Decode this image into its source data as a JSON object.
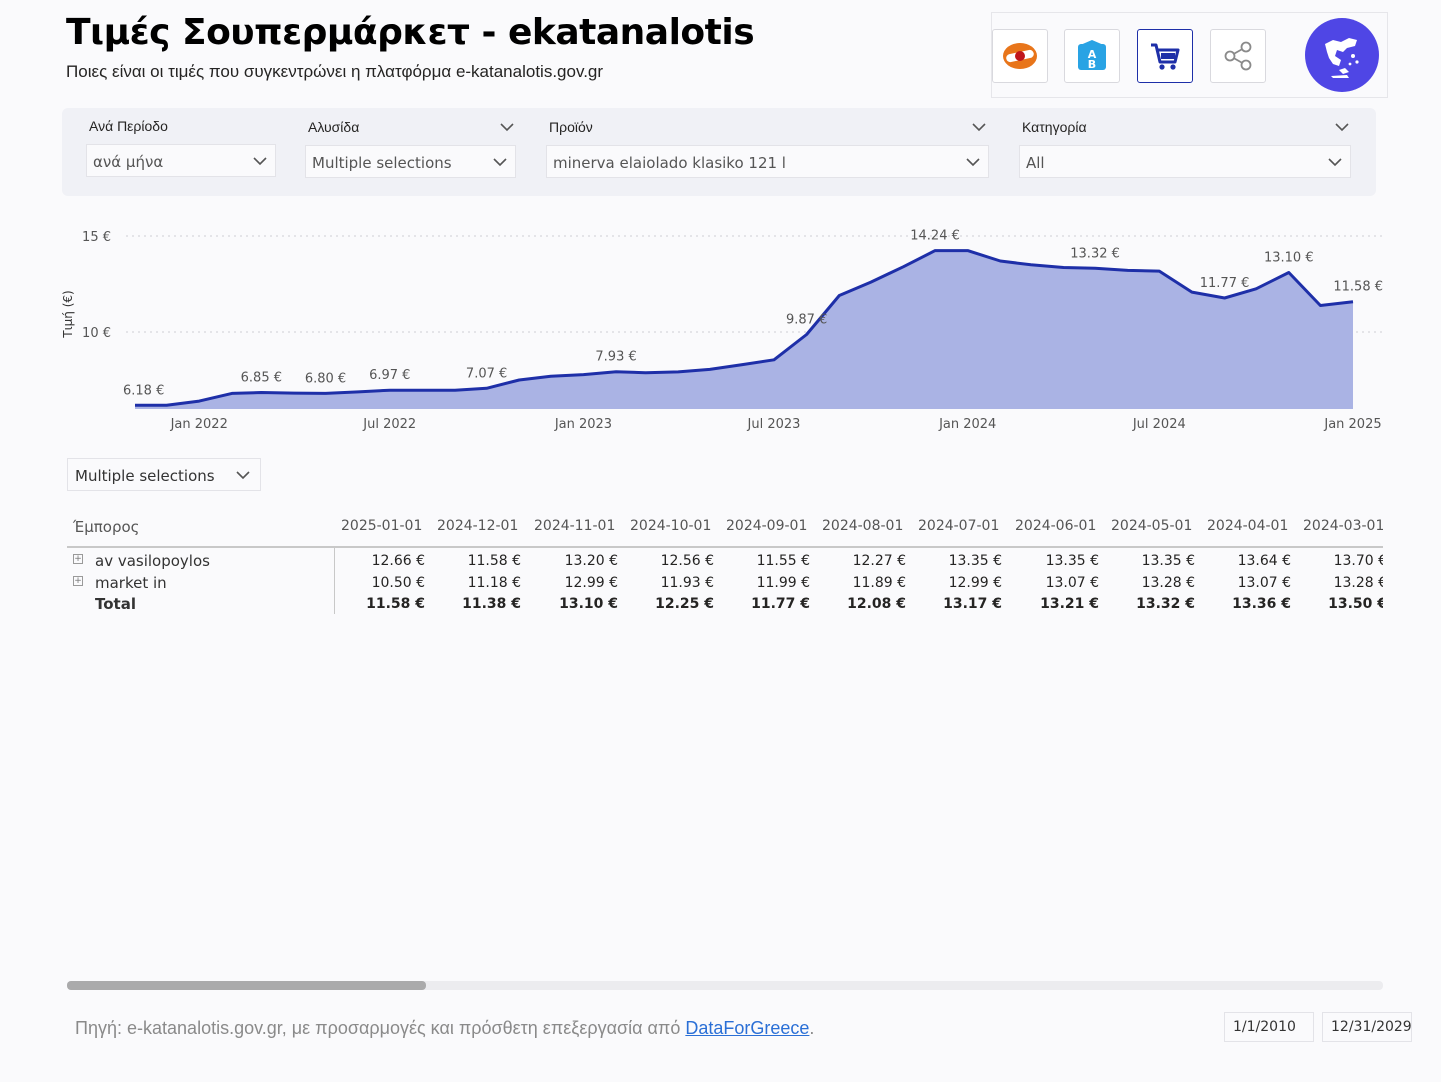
{
  "header": {
    "title": "Τιμές Σουπερμάρκετ - ekatanalotis",
    "subtitle": "Ποιες είναι οι τιμές που συγκεντρώνει η πλατφόρμα e-katanalotis.gov.gr"
  },
  "toolbar": {
    "buttons": [
      "fuel-icon",
      "ab-supermarket-icon",
      "shopping-cart-icon",
      "share-icon",
      "greece-map-icon"
    ],
    "active": "shopping-cart-icon",
    "accent": "#1e2fa8",
    "greece_color": "#4f46e5"
  },
  "filters": {
    "period_label": "Ανά Περίοδο",
    "period_value": "ανά μήνα",
    "chain_label": "Αλυσίδα",
    "chain_value": "Multiple selections",
    "product_label": "Προϊόν",
    "product_value": "minerva elaiolado klasiko 121 l",
    "category_label": "Κατηγορία",
    "category_value": "All"
  },
  "chart_data": {
    "type": "area",
    "ylabel": "Τιμή (€)",
    "yticks": [
      "15 €",
      "10 €"
    ],
    "ylim": [
      6,
      15.5
    ],
    "xticks": [
      "Jan 2022",
      "Jul 2022",
      "Jan 2023",
      "Jul 2023",
      "Jan 2024",
      "Jul 2024",
      "Jan 2025"
    ],
    "grid": true,
    "line_color": "#1e2fa8",
    "fill_color": "#aab3e4",
    "x": [
      "2021-11-01",
      "2021-12-01",
      "2022-01-01",
      "2022-02-01",
      "2022-03-01",
      "2022-04-01",
      "2022-05-01",
      "2022-06-01",
      "2022-07-01",
      "2022-08-01",
      "2022-09-01",
      "2022-10-01",
      "2022-11-01",
      "2022-12-01",
      "2023-01-01",
      "2023-02-01",
      "2023-03-01",
      "2023-04-01",
      "2023-05-01",
      "2023-06-01",
      "2023-07-01",
      "2023-08-01",
      "2023-09-01",
      "2023-10-01",
      "2023-11-01",
      "2023-12-01",
      "2024-01-01",
      "2024-02-01",
      "2024-03-01",
      "2024-04-01",
      "2024-05-01",
      "2024-06-01",
      "2024-07-01",
      "2024-08-01",
      "2024-09-01",
      "2024-10-01",
      "2024-11-01",
      "2024-12-01",
      "2025-01-01"
    ],
    "values": [
      6.18,
      6.18,
      6.4,
      6.8,
      6.85,
      6.82,
      6.8,
      6.88,
      6.97,
      6.97,
      6.97,
      7.07,
      7.5,
      7.7,
      7.78,
      7.93,
      7.88,
      7.92,
      8.05,
      8.3,
      8.55,
      9.87,
      11.9,
      12.6,
      13.4,
      14.24,
      14.24,
      13.7,
      13.5,
      13.36,
      13.32,
      13.21,
      13.17,
      12.08,
      11.77,
      12.25,
      13.1,
      11.38,
      11.58
    ],
    "data_labels": [
      {
        "x": "2021-11-01",
        "label": "6.18 €"
      },
      {
        "x": "2022-03-01",
        "label": "6.85 €"
      },
      {
        "x": "2022-05-01",
        "label": "6.80 €"
      },
      {
        "x": "2022-07-01",
        "label": "6.97 €"
      },
      {
        "x": "2022-10-01",
        "label": "7.07 €"
      },
      {
        "x": "2023-02-01",
        "label": "7.93 €"
      },
      {
        "x": "2023-08-01",
        "label": "9.87 €"
      },
      {
        "x": "2023-12-01",
        "label": "14.24 €"
      },
      {
        "x": "2024-05-01",
        "label": "13.32 €"
      },
      {
        "x": "2024-09-01",
        "label": "11.77 €"
      },
      {
        "x": "2024-11-01",
        "label": "13.10 €"
      },
      {
        "x": "2025-01-01",
        "label": "11.58 €"
      }
    ]
  },
  "secondary_filter": {
    "value": "Multiple selections"
  },
  "matrix": {
    "row_header": "Έμπορος",
    "columns": [
      "2025-01-01",
      "2024-12-01",
      "2024-11-01",
      "2024-10-01",
      "2024-09-01",
      "2024-08-01",
      "2024-07-01",
      "2024-06-01",
      "2024-05-01",
      "2024-04-01",
      "2024-03-01"
    ],
    "rows": [
      {
        "label": "av vasilopoylos",
        "expandable": true,
        "values": [
          "12.66 €",
          "11.58 €",
          "13.20 €",
          "12.56 €",
          "11.55 €",
          "12.27 €",
          "13.35 €",
          "13.35 €",
          "13.35 €",
          "13.64 €",
          "13.70 €"
        ]
      },
      {
        "label": "market in",
        "expandable": true,
        "values": [
          "10.50 €",
          "11.18 €",
          "12.99 €",
          "11.93 €",
          "11.99 €",
          "11.89 €",
          "12.99 €",
          "13.07 €",
          "13.28 €",
          "13.07 €",
          "13.28 €"
        ]
      },
      {
        "label": "Total",
        "expandable": false,
        "bold": true,
        "values": [
          "11.58 €",
          "11.38 €",
          "13.10 €",
          "12.25 €",
          "11.77 €",
          "12.08 €",
          "13.17 €",
          "13.21 €",
          "13.32 €",
          "13.36 €",
          "13.50 €"
        ]
      }
    ]
  },
  "footer": {
    "source_prefix": "Πηγή: e-katanalotis.gov.gr, με προσαρμογές και πρόσθετη επεξεργασία από ",
    "source_link": "DataForGreece",
    "source_suffix": ".",
    "date_start": "1/1/2010",
    "date_end": "12/31/2029"
  }
}
